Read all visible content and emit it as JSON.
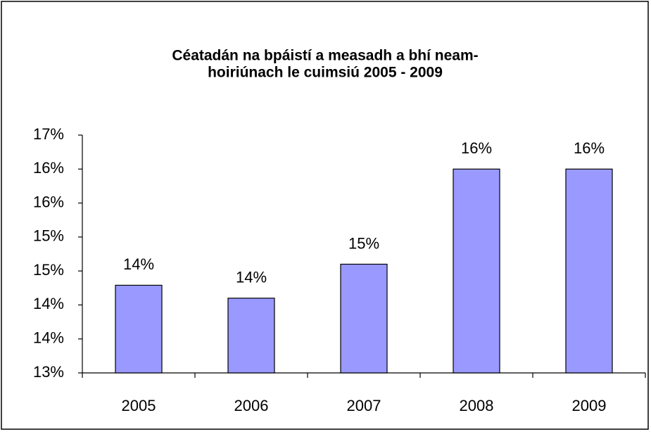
{
  "chart_data": {
    "type": "bar",
    "title": [
      "Céatadán na bpáistí a measadh a bhí neam-",
      "hoiriúnach le cuimsiú 2005 - 2009"
    ],
    "categories": [
      "2005",
      "2006",
      "2007",
      "2008",
      "2009"
    ],
    "values": [
      14.29,
      14.1,
      14.6,
      16.0,
      16.0
    ],
    "value_labels": [
      "14%",
      "14%",
      "15%",
      "16%",
      "16%"
    ],
    "color": "#9999ff",
    "ylim": [
      13,
      16.5
    ],
    "yticks": [
      {
        "value": 13,
        "label": "13%"
      },
      {
        "value": 13.5,
        "label": "14%"
      },
      {
        "value": 14,
        "label": "14%"
      },
      {
        "value": 14.5,
        "label": "15%"
      },
      {
        "value": 15,
        "label": "15%"
      },
      {
        "value": 15.5,
        "label": "16%"
      },
      {
        "value": 16,
        "label": "16%"
      },
      {
        "value": 16.5,
        "label": "17%"
      }
    ],
    "grid": false
  }
}
